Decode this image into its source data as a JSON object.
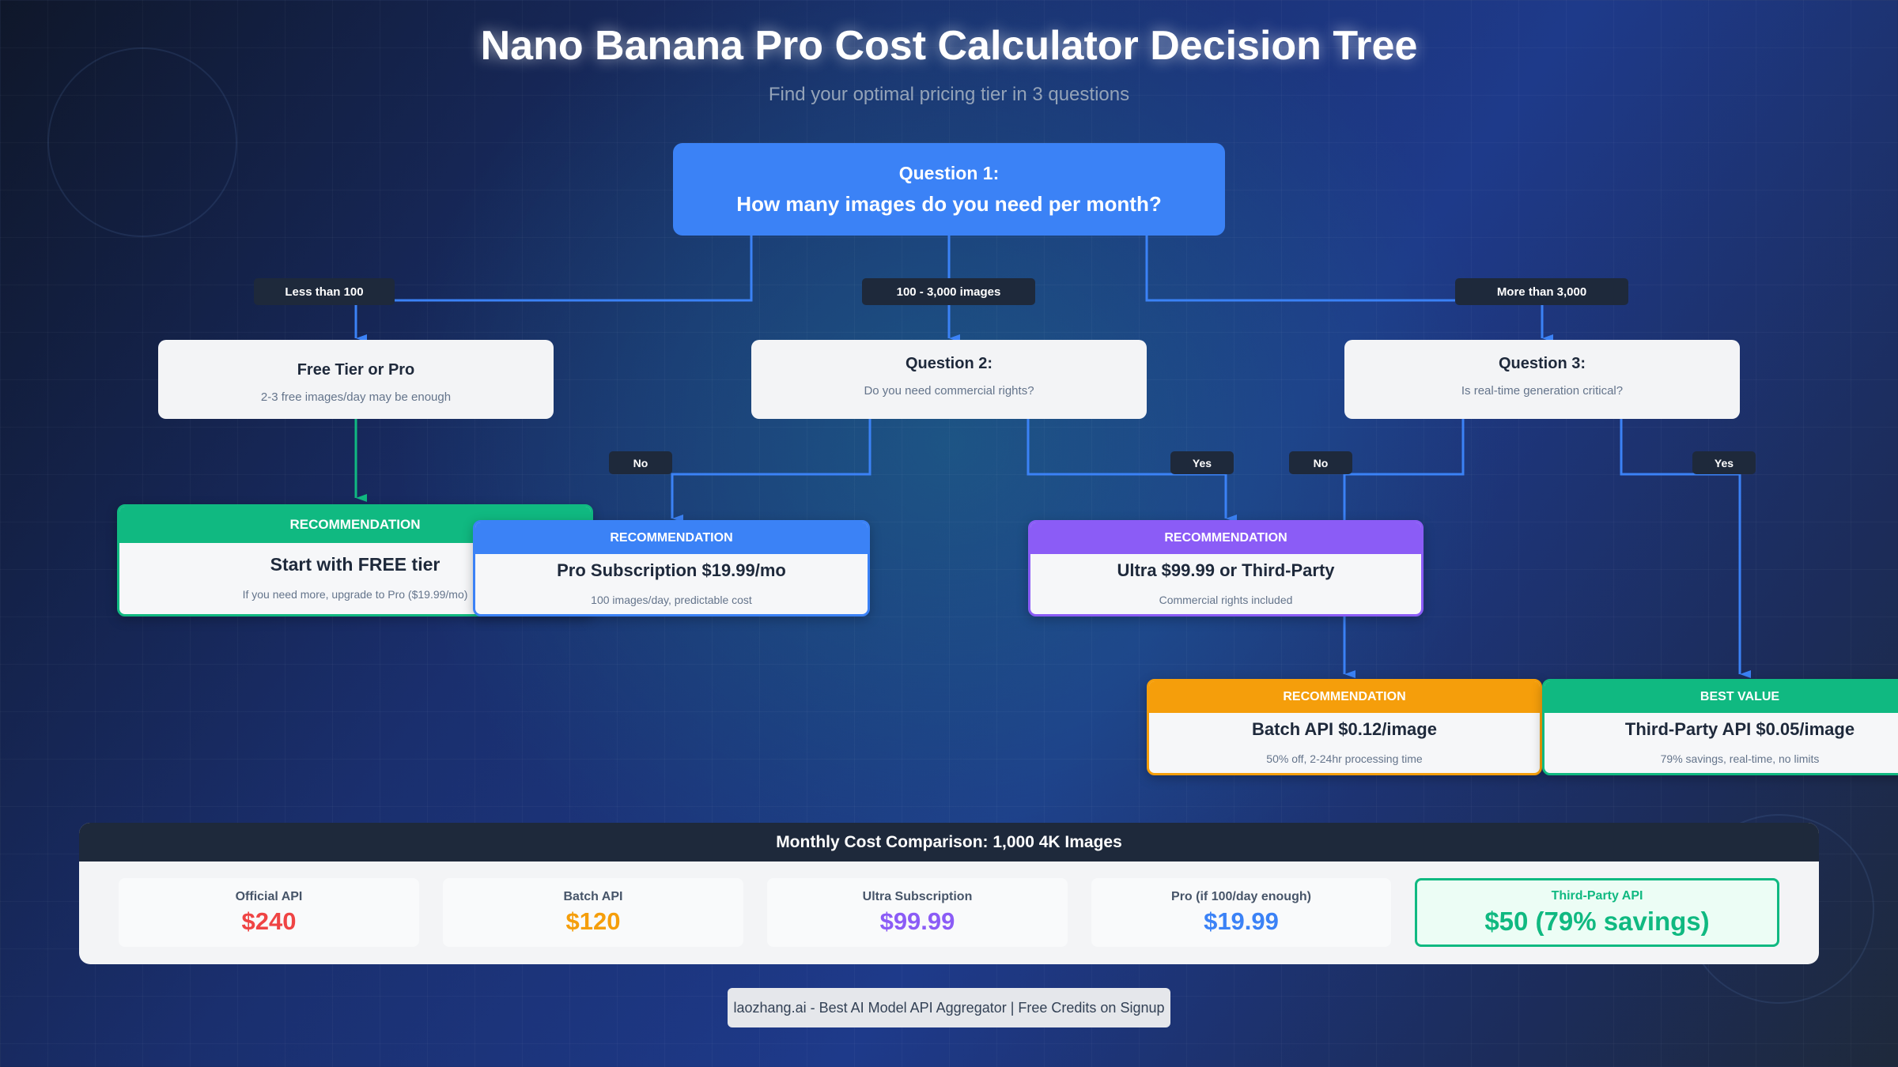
{
  "title": "Nano Banana Pro Cost Calculator Decision Tree",
  "subtitle": "Find your optimal pricing tier in 3 questions",
  "colors": {
    "blue": "#3b82f6",
    "green": "#10b981",
    "purple": "#8b5cf6",
    "orange": "#f59e0b",
    "red": "#ef4444",
    "dark": "#1e293b"
  },
  "q1": {
    "label": "Question 1:",
    "text": "How many images do you need per month?"
  },
  "branches": {
    "low": "Less than 100",
    "mid": "100 - 3,000 images",
    "high": "More than 3,000",
    "no1": "No",
    "yes1": "Yes",
    "no2": "No",
    "yes2": "Yes"
  },
  "nodes": {
    "free": {
      "title": "Free Tier or Pro",
      "sub": "2-3 free images/day may be enough"
    },
    "q2": {
      "title": "Question 2:",
      "sub": "Do you need commercial rights?"
    },
    "q3": {
      "title": "Question 3:",
      "sub": "Is real-time generation critical?"
    }
  },
  "recs": {
    "free": {
      "header": "RECOMMENDATION",
      "title": "Start with FREE tier",
      "sub": "If you need more, upgrade to Pro ($19.99/mo)"
    },
    "pro": {
      "header": "RECOMMENDATION",
      "title": "Pro Subscription $19.99/mo",
      "sub": "100 images/day, predictable cost"
    },
    "ultra": {
      "header": "RECOMMENDATION",
      "title": "Ultra $99.99 or Third-Party",
      "sub": "Commercial rights included"
    },
    "batch": {
      "header": "RECOMMENDATION",
      "title": "Batch API $0.12/image",
      "sub": "50% off, 2-24hr processing time"
    },
    "third": {
      "header": "BEST VALUE",
      "title": "Third-Party API $0.05/image",
      "sub": "79% savings, real-time, no limits"
    }
  },
  "comparison": {
    "title": "Monthly Cost Comparison: 1,000 4K Images",
    "items": [
      {
        "label": "Official API",
        "value": "$240"
      },
      {
        "label": "Batch API",
        "value": "$120"
      },
      {
        "label": "Ultra Subscription",
        "value": "$99.99"
      },
      {
        "label": "Pro (if 100/day enough)",
        "value": "$19.99"
      },
      {
        "label": "Third-Party API",
        "value": "$50 (79% savings)"
      }
    ]
  },
  "footer": "laozhang.ai - Best AI Model API Aggregator | Free Credits on Signup"
}
